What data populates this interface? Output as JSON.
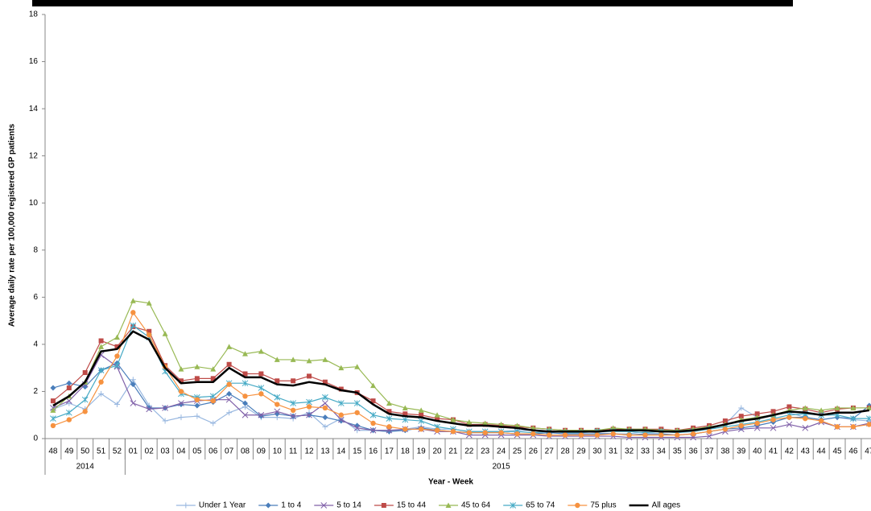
{
  "chart_data": {
    "type": "line",
    "y_label": "Average daily rate per 100,000 registered GP patients",
    "x_label": "Year - Week",
    "categories": [
      "48",
      "49",
      "50",
      "51",
      "52",
      "01",
      "02",
      "03",
      "04",
      "05",
      "06",
      "07",
      "08",
      "09",
      "10",
      "11",
      "12",
      "13",
      "14",
      "15",
      "16",
      "17",
      "18",
      "19",
      "20",
      "21",
      "22",
      "23",
      "24",
      "25",
      "26",
      "27",
      "28",
      "29",
      "30",
      "31",
      "32",
      "33",
      "34",
      "35",
      "36",
      "37",
      "38",
      "39",
      "40",
      "41",
      "42",
      "43",
      "44",
      "45",
      "46",
      "47"
    ],
    "x_groups": [
      {
        "label": "2014",
        "count": 5
      },
      {
        "label": "2015",
        "count": 47
      }
    ],
    "ylim": [
      0,
      18
    ],
    "yticks": [
      0,
      2,
      4,
      6,
      8,
      10,
      12,
      14,
      16,
      18
    ],
    "grid": false,
    "legend": "bottom",
    "series": [
      {
        "name": "Under 1 Year",
        "color": "#99b8e0",
        "marker": "plus",
        "values": [
          1.25,
          1.5,
          1.25,
          1.9,
          1.45,
          2.5,
          1.4,
          0.75,
          0.9,
          0.95,
          0.65,
          1.1,
          1.35,
          0.9,
          0.9,
          0.85,
          1.1,
          0.5,
          0.85,
          0.35,
          0.35,
          0.3,
          0.4,
          0.5,
          0.4,
          0.4,
          0.3,
          0.3,
          0.3,
          0.35,
          0.35,
          0.3,
          0.3,
          0.3,
          0.25,
          0.2,
          0.2,
          0.3,
          0.35,
          0.3,
          0.35,
          0.45,
          0.6,
          1.3,
          0.9,
          1.0,
          1.1,
          0.9,
          0.8,
          0.9,
          0.8,
          0.75
        ]
      },
      {
        "name": "1 to 4",
        "color": "#4a7ebb",
        "marker": "diamond",
        "values": [
          2.15,
          2.35,
          2.2,
          2.9,
          3.2,
          2.3,
          1.3,
          1.3,
          1.45,
          1.4,
          1.55,
          1.9,
          1.5,
          0.95,
          1.05,
          0.95,
          1.0,
          0.9,
          0.75,
          0.55,
          0.35,
          0.3,
          0.35,
          0.45,
          0.35,
          0.3,
          0.25,
          0.25,
          0.25,
          0.2,
          0.2,
          0.25,
          0.2,
          0.2,
          0.2,
          0.2,
          0.15,
          0.2,
          0.2,
          0.15,
          0.2,
          0.3,
          0.4,
          0.45,
          0.55,
          0.7,
          0.9,
          0.9,
          0.8,
          0.9,
          0.85,
          1.4
        ]
      },
      {
        "name": "5 to 14",
        "color": "#7f5fa8",
        "marker": "x",
        "values": [
          1.3,
          1.6,
          2.3,
          3.55,
          3.05,
          1.5,
          1.25,
          1.3,
          1.5,
          1.6,
          1.65,
          1.65,
          1.0,
          1.0,
          1.15,
          0.95,
          1.0,
          1.5,
          0.8,
          0.45,
          0.35,
          0.35,
          0.4,
          0.4,
          0.3,
          0.3,
          0.15,
          0.15,
          0.15,
          0.15,
          0.15,
          0.1,
          0.1,
          0.1,
          0.1,
          0.1,
          0.05,
          0.05,
          0.05,
          0.05,
          0.05,
          0.1,
          0.3,
          0.4,
          0.45,
          0.45,
          0.6,
          0.45,
          0.7,
          0.5,
          0.5,
          0.65
        ]
      },
      {
        "name": "15 to 44",
        "color": "#be4b48",
        "marker": "square",
        "values": [
          1.6,
          2.15,
          2.8,
          4.15,
          3.9,
          4.75,
          4.55,
          3.1,
          2.45,
          2.55,
          2.55,
          3.15,
          2.75,
          2.75,
          2.45,
          2.45,
          2.65,
          2.4,
          2.1,
          1.95,
          1.6,
          1.15,
          1.05,
          1.0,
          0.85,
          0.8,
          0.6,
          0.6,
          0.55,
          0.5,
          0.45,
          0.4,
          0.35,
          0.35,
          0.35,
          0.4,
          0.4,
          0.4,
          0.4,
          0.35,
          0.45,
          0.55,
          0.75,
          0.95,
          1.05,
          1.15,
          1.35,
          1.25,
          1.1,
          1.25,
          1.3,
          1.3
        ]
      },
      {
        "name": "45 to 64",
        "color": "#98b954",
        "marker": "triangle",
        "values": [
          1.2,
          1.8,
          2.4,
          3.9,
          4.3,
          5.85,
          5.75,
          4.45,
          2.95,
          3.05,
          2.95,
          3.9,
          3.6,
          3.7,
          3.35,
          3.35,
          3.3,
          3.35,
          3.0,
          3.05,
          2.25,
          1.5,
          1.3,
          1.2,
          1.0,
          0.8,
          0.7,
          0.65,
          0.6,
          0.55,
          0.45,
          0.4,
          0.35,
          0.35,
          0.35,
          0.45,
          0.4,
          0.4,
          0.35,
          0.35,
          0.4,
          0.5,
          0.6,
          0.8,
          0.9,
          1.0,
          1.2,
          1.3,
          1.2,
          1.3,
          1.3,
          1.3
        ]
      },
      {
        "name": "65 to 74",
        "color": "#46aac5",
        "marker": "asterisk",
        "values": [
          0.85,
          1.1,
          1.65,
          2.9,
          3.1,
          4.8,
          4.3,
          2.85,
          1.9,
          1.75,
          1.8,
          2.35,
          2.35,
          2.15,
          1.75,
          1.5,
          1.55,
          1.75,
          1.5,
          1.5,
          1.0,
          0.85,
          0.8,
          0.75,
          0.5,
          0.4,
          0.3,
          0.3,
          0.3,
          0.3,
          0.25,
          0.3,
          0.25,
          0.25,
          0.3,
          0.3,
          0.3,
          0.25,
          0.3,
          0.25,
          0.3,
          0.4,
          0.5,
          0.6,
          0.7,
          0.85,
          1.0,
          1.05,
          1.0,
          1.0,
          0.85,
          0.85
        ]
      },
      {
        "name": "75 plus",
        "color": "#f69240",
        "marker": "circle",
        "values": [
          0.55,
          0.8,
          1.15,
          2.4,
          3.5,
          5.35,
          4.4,
          3.05,
          2.0,
          1.65,
          1.6,
          2.3,
          1.8,
          1.9,
          1.45,
          1.2,
          1.35,
          1.3,
          1.0,
          1.1,
          0.65,
          0.5,
          0.4,
          0.4,
          0.35,
          0.3,
          0.25,
          0.25,
          0.25,
          0.2,
          0.2,
          0.15,
          0.15,
          0.15,
          0.15,
          0.2,
          0.15,
          0.15,
          0.15,
          0.15,
          0.2,
          0.3,
          0.4,
          0.55,
          0.65,
          0.8,
          0.9,
          0.85,
          0.75,
          0.5,
          0.5,
          0.6
        ]
      },
      {
        "name": "All ages",
        "color": "#000000",
        "marker": "none",
        "values": [
          1.4,
          1.8,
          2.4,
          3.7,
          3.8,
          4.55,
          4.2,
          3.0,
          2.35,
          2.4,
          2.4,
          3.0,
          2.6,
          2.6,
          2.3,
          2.25,
          2.4,
          2.3,
          2.05,
          1.95,
          1.45,
          1.05,
          0.95,
          0.9,
          0.75,
          0.65,
          0.55,
          0.55,
          0.5,
          0.45,
          0.35,
          0.3,
          0.3,
          0.3,
          0.3,
          0.35,
          0.35,
          0.35,
          0.3,
          0.3,
          0.35,
          0.45,
          0.6,
          0.75,
          0.85,
          1.0,
          1.15,
          1.1,
          1.0,
          1.1,
          1.1,
          1.2
        ]
      }
    ]
  }
}
